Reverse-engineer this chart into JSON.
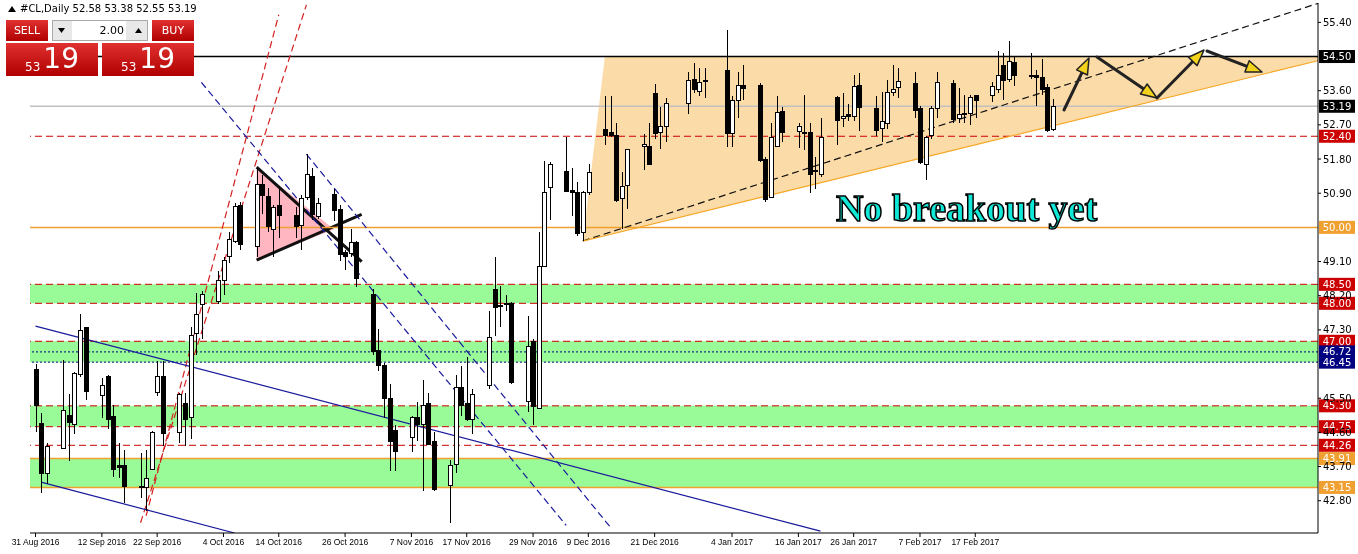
{
  "chart_data": {
    "type": "candlestick",
    "title": "#CL,Daily 52.58 53.38 52.55 53.19",
    "annotations": [
      "SELL",
      "2.00",
      "BUY",
      "53",
      "19",
      "53",
      "19",
      "No breakout yet"
    ],
    "x": [
      "2016-08-31",
      "2016-09-01",
      "2016-09-02",
      "2016-09-05",
      "2016-09-06",
      "2016-09-07",
      "2016-09-08",
      "2016-09-09",
      "2016-09-12",
      "2016-09-13",
      "2016-09-14",
      "2016-09-15",
      "2016-09-16",
      "2016-09-19",
      "2016-09-20",
      "2016-09-21",
      "2016-09-22",
      "2016-09-23",
      "2016-09-26",
      "2016-09-27",
      "2016-09-28",
      "2016-09-29",
      "2016-09-30",
      "2016-10-03",
      "2016-10-04",
      "2016-10-05",
      "2016-10-06",
      "2016-10-07",
      "2016-10-10",
      "2016-10-11",
      "2016-10-12",
      "2016-10-13",
      "2016-10-14",
      "2016-10-17",
      "2016-10-18",
      "2016-10-19",
      "2016-10-20",
      "2016-10-21",
      "2016-10-24",
      "2016-10-25",
      "2016-10-26",
      "2016-10-27",
      "2016-10-28",
      "2016-10-31",
      "2016-11-01",
      "2016-11-02",
      "2016-11-03",
      "2016-11-04",
      "2016-11-07",
      "2016-11-08",
      "2016-11-09",
      "2016-11-10",
      "2016-11-11",
      "2016-11-14",
      "2016-11-15",
      "2016-11-16",
      "2016-11-17",
      "2016-11-18",
      "2016-11-21",
      "2016-11-22",
      "2016-11-23",
      "2016-11-24",
      "2016-11-25",
      "2016-11-28",
      "2016-11-29",
      "2016-11-30",
      "2016-12-01",
      "2016-12-02",
      "2016-12-05",
      "2016-12-06",
      "2016-12-07",
      "2016-12-08",
      "2016-12-09",
      "2016-12-12",
      "2016-12-13",
      "2016-12-14",
      "2016-12-15",
      "2016-12-16",
      "2016-12-19",
      "2016-12-20",
      "2016-12-21",
      "2016-12-22",
      "2016-12-23",
      "2016-12-27",
      "2016-12-28",
      "2016-12-29",
      "2016-12-30",
      "2017-01-03",
      "2017-01-04",
      "2017-01-05",
      "2017-01-06",
      "2017-01-09",
      "2017-01-10",
      "2017-01-11",
      "2017-01-12",
      "2017-01-13",
      "2017-01-16",
      "2017-01-17",
      "2017-01-18",
      "2017-01-19",
      "2017-01-20",
      "2017-01-23",
      "2017-01-24",
      "2017-01-25",
      "2017-01-26",
      "2017-01-27",
      "2017-01-30",
      "2017-01-31",
      "2017-02-01",
      "2017-02-02",
      "2017-02-03",
      "2017-02-06",
      "2017-02-07",
      "2017-02-08",
      "2017-02-09",
      "2017-02-10",
      "2017-02-13",
      "2017-02-14",
      "2017-02-15",
      "2017-02-16",
      "2017-02-17",
      "2017-02-20",
      "2017-02-21",
      "2017-02-22",
      "2017-02-23",
      "2017-02-24",
      "2017-02-27",
      "2017-02-28",
      "2017-03-01",
      "2017-03-02",
      "2017-03-03"
    ],
    "ohlc": [
      [
        46.25,
        46.4,
        44.6,
        45.3
      ],
      [
        44.84,
        45.1,
        43.0,
        43.53
      ],
      [
        43.53,
        44.33,
        43.25,
        44.23
      ],
      [
        44.18,
        46.5,
        44.15,
        45.17
      ],
      [
        45.05,
        45.6,
        43.85,
        44.86
      ],
      [
        44.81,
        46.2,
        44.56,
        46.16
      ],
      [
        46.13,
        47.71,
        46.07,
        47.29
      ],
      [
        47.35,
        47.35,
        45.45,
        45.69
      ],
      [
        45.57,
        46.02,
        44.99,
        45.83
      ],
      [
        46.07,
        46.11,
        44.7,
        44.94
      ],
      [
        45.03,
        45.31,
        43.43,
        43.62
      ],
      [
        43.72,
        44.33,
        43.39,
        43.67
      ],
      [
        43.72,
        44.14,
        42.73,
        43.18
      ],
      [
        43.14,
        44.05,
        42.87,
        43.18
      ],
      [
        43.15,
        44.14,
        42.54,
        43.39
      ],
      [
        43.61,
        44.64,
        43.61,
        44.6
      ],
      [
        45.64,
        46.49,
        45.55,
        46.07
      ],
      [
        46.07,
        46.49,
        44.23,
        44.56
      ],
      [
        44.6,
        45.64,
        44.33,
        45.6
      ],
      [
        45.36,
        45.64,
        44.23,
        44.94
      ],
      [
        44.98,
        47.38,
        44.42,
        47.15
      ],
      [
        47.2,
        48.28,
        46.63,
        47.71
      ],
      [
        47.98,
        48.32,
        47.05,
        48.24
      ],
      [
        48.04,
        48.84,
        47.99,
        48.6
      ],
      [
        48.6,
        49.22,
        48.23,
        49.14
      ],
      [
        49.23,
        49.87,
        49.07,
        49.68
      ],
      [
        49.64,
        50.63,
        49.59,
        50.55
      ],
      [
        50.58,
        50.67,
        49.4,
        49.55
      ],
      [
        49.5,
        51.57,
        49.22,
        51.14
      ],
      [
        51.12,
        51.38,
        50.34,
        50.83
      ],
      [
        50.81,
        51.05,
        49.87,
        50.02
      ],
      [
        49.95,
        50.58,
        49.22,
        50.53
      ],
      [
        50.58,
        51.1,
        49.73,
        50.3
      ],
      [
        50.3,
        50.53,
        49.73,
        50.03
      ],
      [
        50.06,
        50.86,
        49.4,
        50.77
      ],
      [
        50.8,
        51.92,
        50.72,
        51.4
      ],
      [
        51.33,
        51.57,
        50.2,
        50.34
      ],
      [
        50.29,
        50.77,
        50.23,
        50.62
      ],
      [
        50.86,
        51.0,
        50.16,
        50.44
      ],
      [
        50.48,
        50.58,
        49.12,
        49.29
      ],
      [
        49.33,
        49.4,
        48.89,
        49.22
      ],
      [
        49.31,
        49.97,
        49.22,
        49.59
      ],
      [
        49.61,
        49.64,
        48.42,
        48.65
      ],
      [
        48.23,
        48.37,
        46.63,
        46.72
      ],
      [
        46.77,
        47.33,
        46.21,
        46.35
      ],
      [
        46.35,
        46.44,
        44.98,
        45.5
      ],
      [
        45.5,
        45.88,
        43.58,
        44.37
      ],
      [
        44.66,
        44.8,
        43.58,
        44.09
      ],
      [
        44.47,
        45.03,
        44.09,
        44.98
      ],
      [
        44.98,
        45.41,
        44.37,
        44.8
      ],
      [
        44.8,
        45.97,
        43.06,
        45.31
      ],
      [
        45.36,
        45.64,
        44.28,
        44.28
      ],
      [
        44.37,
        44.61,
        43.06,
        43.1
      ],
      [
        43.2,
        43.86,
        42.21,
        43.72
      ],
      [
        43.76,
        46.11,
        43.53,
        45.78
      ],
      [
        45.78,
        46.35,
        45.03,
        45.31
      ],
      [
        45.36,
        46.58,
        44.89,
        44.94
      ],
      [
        44.94,
        45.74,
        44.56,
        45.6
      ],
      [
        45.83,
        47.8,
        45.74,
        47.1
      ],
      [
        48.37,
        49.22,
        47.15,
        47.9
      ],
      [
        47.95,
        48.46,
        47.38,
        47.92
      ],
      [
        48.0,
        48.23,
        47.8,
        47.99
      ],
      [
        48.0,
        48.04,
        45.88,
        45.92
      ],
      [
        45.41,
        47.66,
        45.13,
        46.86
      ],
      [
        47.0,
        47.05,
        44.8,
        45.27
      ],
      [
        45.22,
        49.87,
        45.22,
        48.98
      ],
      [
        48.98,
        51.75,
        48.98,
        50.91
      ],
      [
        51.05,
        51.71,
        50.2,
        51.66
      ],
      [
        51.47,
        52.37,
        50.95,
        50.95
      ],
      [
        50.97,
        51.57,
        50.3,
        50.91
      ],
      [
        50.91,
        51.19,
        49.78,
        49.83
      ],
      [
        49.87,
        50.95,
        49.64,
        50.93
      ],
      [
        50.91,
        51.66,
        50.86,
        51.45
      ],
      [
        52.58,
        53.45,
        52.18,
        52.41
      ],
      [
        52.5,
        53.45,
        52.37,
        52.43
      ],
      [
        52.41,
        52.74,
        50.67,
        50.72
      ],
      [
        50.77,
        51.47,
        49.97,
        51.08
      ],
      [
        51.1,
        52.04,
        50.49,
        52.04
      ],
      [
        52.14,
        52.46,
        51.52,
        52.17
      ],
      [
        52.14,
        52.74,
        51.66,
        51.66
      ],
      [
        53.52,
        53.78,
        52.32,
        52.46
      ],
      [
        52.49,
        53.17,
        52.06,
        52.65
      ],
      [
        52.65,
        53.4,
        52.24,
        53.26
      ],
      [
        53.26,
        54.1,
        52.99,
        53.87
      ],
      [
        53.9,
        54.34,
        53.54,
        53.62
      ],
      [
        53.59,
        54.2,
        53.45,
        53.82
      ],
      [
        53.88,
        54.2,
        53.4,
        53.85
      ],
      [
        54.12,
        55.19,
        52.13,
        52.46
      ],
      [
        52.46,
        53.45,
        52.13,
        53.33
      ],
      [
        53.35,
        54.1,
        52.88,
        53.75
      ],
      [
        53.73,
        54.29,
        53.35,
        53.65
      ],
      [
        53.75,
        53.8,
        51.73,
        51.75
      ],
      [
        51.8,
        51.85,
        50.67,
        50.74
      ],
      [
        50.8,
        52.74,
        50.77,
        52.37
      ],
      [
        52.13,
        53.47,
        52.11,
        53.02
      ],
      [
        53.05,
        53.16,
        52.24,
        52.51
      ],
      [
        52.53,
        52.74,
        52.08,
        52.65
      ],
      [
        52.51,
        53.49,
        52.04,
        52.49
      ],
      [
        52.51,
        52.74,
        50.91,
        51.38
      ],
      [
        51.49,
        51.85,
        51.0,
        51.47
      ],
      [
        51.4,
        52.88,
        51.33,
        52.37
      ],
      [
        53.43,
        53.45,
        52.18,
        52.81
      ],
      [
        52.86,
        53.54,
        52.65,
        52.93
      ],
      [
        52.96,
        53.26,
        52.79,
        52.93
      ],
      [
        52.93,
        54.01,
        52.79,
        53.71
      ],
      [
        53.73,
        54.06,
        52.55,
        53.16
      ],
      [
        53.14,
        53.45,
        52.41,
        52.55
      ],
      [
        52.6,
        53.56,
        52.24,
        52.79
      ],
      [
        52.74,
        53.87,
        52.6,
        53.54
      ],
      [
        53.56,
        54.29,
        53.45,
        53.63
      ],
      [
        53.68,
        54.2,
        53.4,
        53.84
      ],
      [
        53.8,
        54.1,
        52.88,
        53.07
      ],
      [
        53.12,
        53.21,
        51.66,
        51.71
      ],
      [
        51.66,
        52.41,
        51.24,
        52.37
      ],
      [
        52.41,
        53.21,
        52.32,
        53.12
      ],
      [
        53.12,
        54.1,
        52.88,
        53.82
      ],
      [
        53.8,
        53.87,
        52.74,
        52.84
      ],
      [
        52.88,
        53.68,
        52.74,
        52.98
      ],
      [
        52.99,
        53.49,
        52.74,
        53.0
      ],
      [
        53.0,
        53.49,
        52.69,
        53.43
      ],
      [
        53.47,
        53.49,
        52.88,
        53.35
      ],
      [
        53.47,
        53.84,
        53.31,
        53.7
      ],
      [
        53.63,
        54.65,
        53.54,
        54.01
      ],
      [
        54.27,
        54.58,
        53.35,
        53.87
      ],
      [
        53.9,
        54.9,
        53.84,
        54.37
      ],
      [
        54.34,
        54.48,
        53.73,
        54.0
      ],
      [
        54.01,
        54.6,
        53.92,
        53.98
      ],
      [
        54.01,
        54.15,
        53.19,
        53.96
      ],
      [
        53.96,
        54.43,
        53.49,
        53.63
      ],
      [
        53.68,
        53.77,
        52.51,
        52.55
      ],
      [
        52.58,
        53.38,
        52.55,
        53.19
      ]
    ],
    "series": [
      {
        "type": "line",
        "color": "#d42020",
        "line_style": "dashed",
        "x": [
          "2016-09-19",
          "2016-10-19"
        ],
        "values": [
          42.22,
          55.86
        ]
      },
      {
        "type": "line",
        "color": "#d42020",
        "line_style": "dashed",
        "x": [
          "2016-09-20",
          "2016-10-14"
        ],
        "values": [
          42.4,
          55.6
        ]
      },
      {
        "type": "line",
        "color": "#1a1a9c",
        "line_style": "solid",
        "x": [
          "2016-08-31",
          "2017-01-20"
        ],
        "values": [
          47.4,
          42.0
        ]
      },
      {
        "type": "line",
        "color": "#1a1a9c",
        "line_style": "solid",
        "x": [
          "2016-09-01",
          "2016-10-06"
        ],
        "values": [
          43.29,
          41.95
        ]
      },
      {
        "type": "line",
        "color": "#1a1a9c",
        "line_style": "dashed",
        "x": [
          "2016-09-30",
          "2016-12-05"
        ],
        "values": [
          53.82,
          42.15
        ]
      },
      {
        "type": "line",
        "color": "#1a1a9c",
        "line_style": "dashed",
        "x": [
          "2016-10-19",
          "2016-12-13"
        ],
        "values": [
          51.93,
          42.1
        ]
      },
      {
        "type": "line",
        "color": "#111111",
        "line_style": "dashed",
        "x": [
          "2016-12-08",
          "2017-04-20"
        ],
        "values": [
          49.64,
          55.9
        ]
      },
      {
        "type": "line",
        "color": "#f5a623",
        "line_style": "solid",
        "x": [
          "2016-12-08",
          "2016-12-12",
          "2017-04-20"
        ],
        "values": [
          49.64,
          49.78,
          54.39
        ],
        "lower": [
          49.64,
          49.78,
          54.39
        ],
        "upper": [
          49.64,
          54.5,
          54.5
        ]
      },
      {
        "type": "line",
        "color": "#111111",
        "line_style": "solid",
        "x": [
          "2016-10-10",
          "2016-10-29"
        ],
        "values": [
          51.59,
          49.1
        ]
      },
      {
        "type": "line",
        "color": "#111111",
        "line_style": "solid",
        "x": [
          "2016-10-10",
          "2016-10-29"
        ],
        "values": [
          49.14,
          50.34
        ]
      }
    ],
    "xlim": [
      "2016-08-30",
      "2017-04-20"
    ],
    "xticks": [
      {
        "value": "2016-08-31",
        "label": "31 Aug 2016"
      },
      {
        "value": "2016-09-12",
        "label": "12 Sep 2016"
      },
      {
        "value": "2016-09-22",
        "label": "22 Sep 2016"
      },
      {
        "value": "2016-10-04",
        "label": "4 Oct 2016"
      },
      {
        "value": "2016-10-14",
        "label": "14 Oct 2016"
      },
      {
        "value": "2016-10-26",
        "label": "26 Oct 2016"
      },
      {
        "value": "2016-11-07",
        "label": "7 Nov 2016"
      },
      {
        "value": "2016-11-17",
        "label": "17 Nov 2016"
      },
      {
        "value": "2016-11-29",
        "label": "29 Nov 2016"
      },
      {
        "value": "2016-12-09",
        "label": "9 Dec 2016"
      },
      {
        "value": "2016-12-21",
        "label": "21 Dec 2016"
      },
      {
        "value": "2017-01-04",
        "label": "4 Jan 2017"
      },
      {
        "value": "2017-01-16",
        "label": "16 Jan 2017"
      },
      {
        "value": "2017-01-26",
        "label": "26 Jan 2017"
      },
      {
        "value": "2017-02-07",
        "label": "7 Feb 2017"
      },
      {
        "value": "2017-02-17",
        "label": "17 Feb 2017"
      }
    ],
    "ylim": [
      41.95,
      55.91
    ],
    "yticks": [
      {
        "value": 55.4,
        "label": "55.40"
      },
      {
        "value": 53.6,
        "label": "53.60"
      },
      {
        "value": 52.7,
        "label": "52.70"
      },
      {
        "value": 51.8,
        "label": "51.80"
      },
      {
        "value": 50.9,
        "label": "50.90"
      },
      {
        "value": 49.1,
        "label": "49.10"
      },
      {
        "value": 48.2,
        "label": "48.20"
      },
      {
        "value": 47.3,
        "label": "47.30"
      },
      {
        "value": 45.5,
        "label": "45.50"
      },
      {
        "value": 44.6,
        "label": "44.60"
      },
      {
        "value": 43.7,
        "label": "43.70"
      },
      {
        "value": 42.8,
        "label": "42.80"
      }
    ],
    "bands": [
      {
        "axis": "y",
        "from": 48.0,
        "to": 48.5,
        "color": "#98fb98"
      },
      {
        "axis": "y",
        "from": 46.45,
        "to": 47.0,
        "color": "#98fb98"
      },
      {
        "axis": "y",
        "from": 44.75,
        "to": 45.3,
        "color": "#98fb98"
      },
      {
        "axis": "y",
        "from": 43.15,
        "to": 43.91,
        "color": "#98fb98"
      }
    ],
    "ref_lines": [
      {
        "axis": "y",
        "value": 54.5,
        "label": "54.50",
        "color": "#000000",
        "line_style": "solid"
      },
      {
        "axis": "y",
        "value": 53.19,
        "label": "53.19",
        "color": "#c0c0c0",
        "line_style": "solid"
      },
      {
        "axis": "y",
        "value": 52.4,
        "label": "52.40",
        "color": "#cc0000",
        "line_style": "dashed"
      },
      {
        "axis": "y",
        "value": 50.0,
        "label": "50.00",
        "color": "#f0a030",
        "line_style": "solid"
      },
      {
        "axis": "y",
        "value": 48.5,
        "label": "48.50",
        "color": "#cc0000",
        "line_style": "dashed"
      },
      {
        "axis": "y",
        "value": 48.0,
        "label": "48.00",
        "color": "#cc0000",
        "line_style": "dashed"
      },
      {
        "axis": "y",
        "value": 47.0,
        "label": "47.00",
        "color": "#cc0000",
        "line_style": "dashed"
      },
      {
        "axis": "y",
        "value": 46.72,
        "label": "46.72",
        "color": "#000080",
        "line_style": "dotted"
      },
      {
        "axis": "y",
        "value": 46.45,
        "label": "46.45",
        "color": "#000080",
        "line_style": "dotted"
      },
      {
        "axis": "y",
        "value": 45.3,
        "label": "45.30",
        "color": "#cc0000",
        "line_style": "dashed"
      },
      {
        "axis": "y",
        "value": 44.75,
        "label": "44.75",
        "color": "#cc0000",
        "line_style": "dashed"
      },
      {
        "axis": "y",
        "value": 44.26,
        "label": "44.26",
        "color": "#cc0000",
        "line_style": "dashed"
      },
      {
        "axis": "y",
        "value": 43.91,
        "label": "43.91",
        "color": "#f0a030",
        "line_style": "solid"
      },
      {
        "axis": "y",
        "value": 43.15,
        "label": "43.15",
        "color": "#f0a030",
        "line_style": "solid"
      }
    ]
  }
}
